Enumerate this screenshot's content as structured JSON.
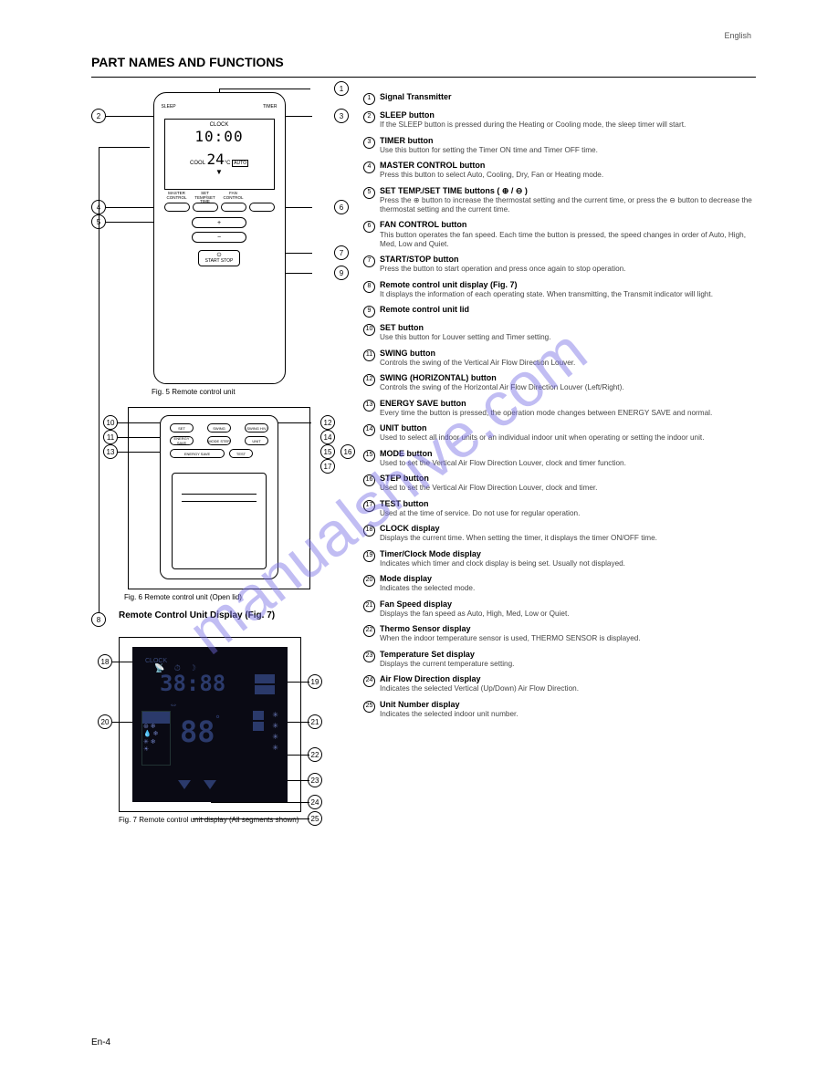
{
  "page": {
    "lang_tag": "English",
    "title": "PART NAMES AND FUNCTIONS",
    "fig5_label": "Fig. 5 Remote control unit",
    "fig6_label": "Fig. 6 Remote control unit (Open lid)",
    "fig7_label": "Fig. 7 Remote control unit display (All segments shown)",
    "remote_display_panel": "Remote Control Unit Display (Fig. 7)",
    "page_number": "En-4"
  },
  "remote_lcd": {
    "clock_label": "CLOCK",
    "time": "10:00",
    "mode_label": "COOL",
    "temp": "24",
    "temp_unit": "°C",
    "auto": "AUTO"
  },
  "button_labels": {
    "sleep": "SLEEP",
    "timer": "TIMER",
    "master": "MASTER CONTROL",
    "set_timer": "SET TEMP/SET TIME",
    "fan": "FAN CONTROL",
    "plus": "+",
    "minus": "−",
    "start_stop": "START STOP",
    "set": "SET",
    "swing": "SWING",
    "swing_hv": "SWING H/V",
    "energy": "ENERGY SAVE",
    "mode_step": "MODE STEP",
    "unit": "UNIT",
    "test": "TEST"
  },
  "display": {
    "clock": "CLOCK",
    "time": "38:88",
    "temp": "88",
    "deg": "°"
  },
  "callouts": [
    {
      "n": "1",
      "name": "Signal Transmitter",
      "desc": ""
    },
    {
      "n": "2",
      "name": "SLEEP button",
      "desc": "If the SLEEP button is pressed during the Heating or Cooling mode, the sleep timer will start."
    },
    {
      "n": "3",
      "name": "TIMER button",
      "desc": "Use this button for setting the Timer ON time and Timer OFF time."
    },
    {
      "n": "4",
      "name": "MASTER CONTROL button",
      "desc": "Press this button to select Auto, Cooling, Dry, Fan or Heating mode."
    },
    {
      "n": "5",
      "name": "SET TEMP./SET TIME buttons ( ⊕ / ⊖ )",
      "desc": "Press the ⊕ button to increase the thermostat setting and the current time, or press the ⊖ button to decrease the thermostat setting and the current time."
    },
    {
      "n": "6",
      "name": "FAN CONTROL button",
      "desc": "This button operates the fan speed. Each time the button is pressed, the speed changes in order of Auto, High, Med, Low and Quiet."
    },
    {
      "n": "7",
      "name": "START/STOP button",
      "desc": "Press the button to start operation and press once again to stop operation."
    },
    {
      "n": "8",
      "name": "Remote control unit display (Fig. 7)",
      "desc": "It displays the information of each operating state. When transmitting, the Transmit indicator will light."
    },
    {
      "n": "9",
      "name": "Remote control unit lid",
      "desc": ""
    },
    {
      "n": "10",
      "name": "SET button",
      "desc": "Use this button for Louver setting and Timer setting."
    },
    {
      "n": "11",
      "name": "SWING button",
      "desc": "Controls the swing of the Vertical Air Flow Direction Louver."
    },
    {
      "n": "12",
      "name": "SWING (HORIZONTAL) button",
      "desc": "Controls the swing of the Horizontal Air Flow Direction Louver (Left/Right)."
    },
    {
      "n": "13",
      "name": "ENERGY SAVE button",
      "desc": "Every time the button is pressed, the operation mode changes between ENERGY SAVE and normal."
    },
    {
      "n": "14",
      "name": "UNIT button",
      "desc": "Used to select all indoor units or an individual indoor unit when operating or setting the indoor unit."
    },
    {
      "n": "15",
      "name": "MODE button",
      "desc": "Used to set the Vertical Air Flow Direction Louver, clock and timer function."
    },
    {
      "n": "16",
      "name": "STEP button",
      "desc": "Used to set the Vertical Air Flow Direction Louver, clock and timer."
    },
    {
      "n": "17",
      "name": "TEST button",
      "desc": "Used at the time of service. Do not use for regular operation."
    },
    {
      "n": "18",
      "name": "CLOCK display",
      "desc": "Displays the current time. When setting the timer, it displays the timer ON/OFF time."
    },
    {
      "n": "19",
      "name": "Timer/Clock Mode display",
      "desc": "Indicates which timer and clock display is being set. Usually not displayed."
    },
    {
      "n": "20",
      "name": "Mode display",
      "desc": "Indicates the selected mode."
    },
    {
      "n": "21",
      "name": "Fan Speed display",
      "desc": "Displays the fan speed as Auto, High, Med, Low or Quiet."
    },
    {
      "n": "22",
      "name": "Thermo Sensor display",
      "desc": "When the indoor temperature sensor is used, THERMO SENSOR is displayed."
    },
    {
      "n": "23",
      "name": "Temperature Set display",
      "desc": "Displays the current temperature setting."
    },
    {
      "n": "24",
      "name": "Air Flow Direction display",
      "desc": "Indicates the selected Vertical (Up/Down) Air Flow Direction."
    },
    {
      "n": "25",
      "name": "Unit Number display",
      "desc": "Indicates the selected indoor unit number."
    }
  ],
  "watermark": "manualshive.com",
  "colors": {
    "page_bg": "#ffffff",
    "text": "#000000",
    "display_bg": "#0a0a14",
    "segment": "#2b3a6b",
    "segment_light": "#6a7bbb",
    "watermark": "rgba(118,108,228,0.45)"
  }
}
